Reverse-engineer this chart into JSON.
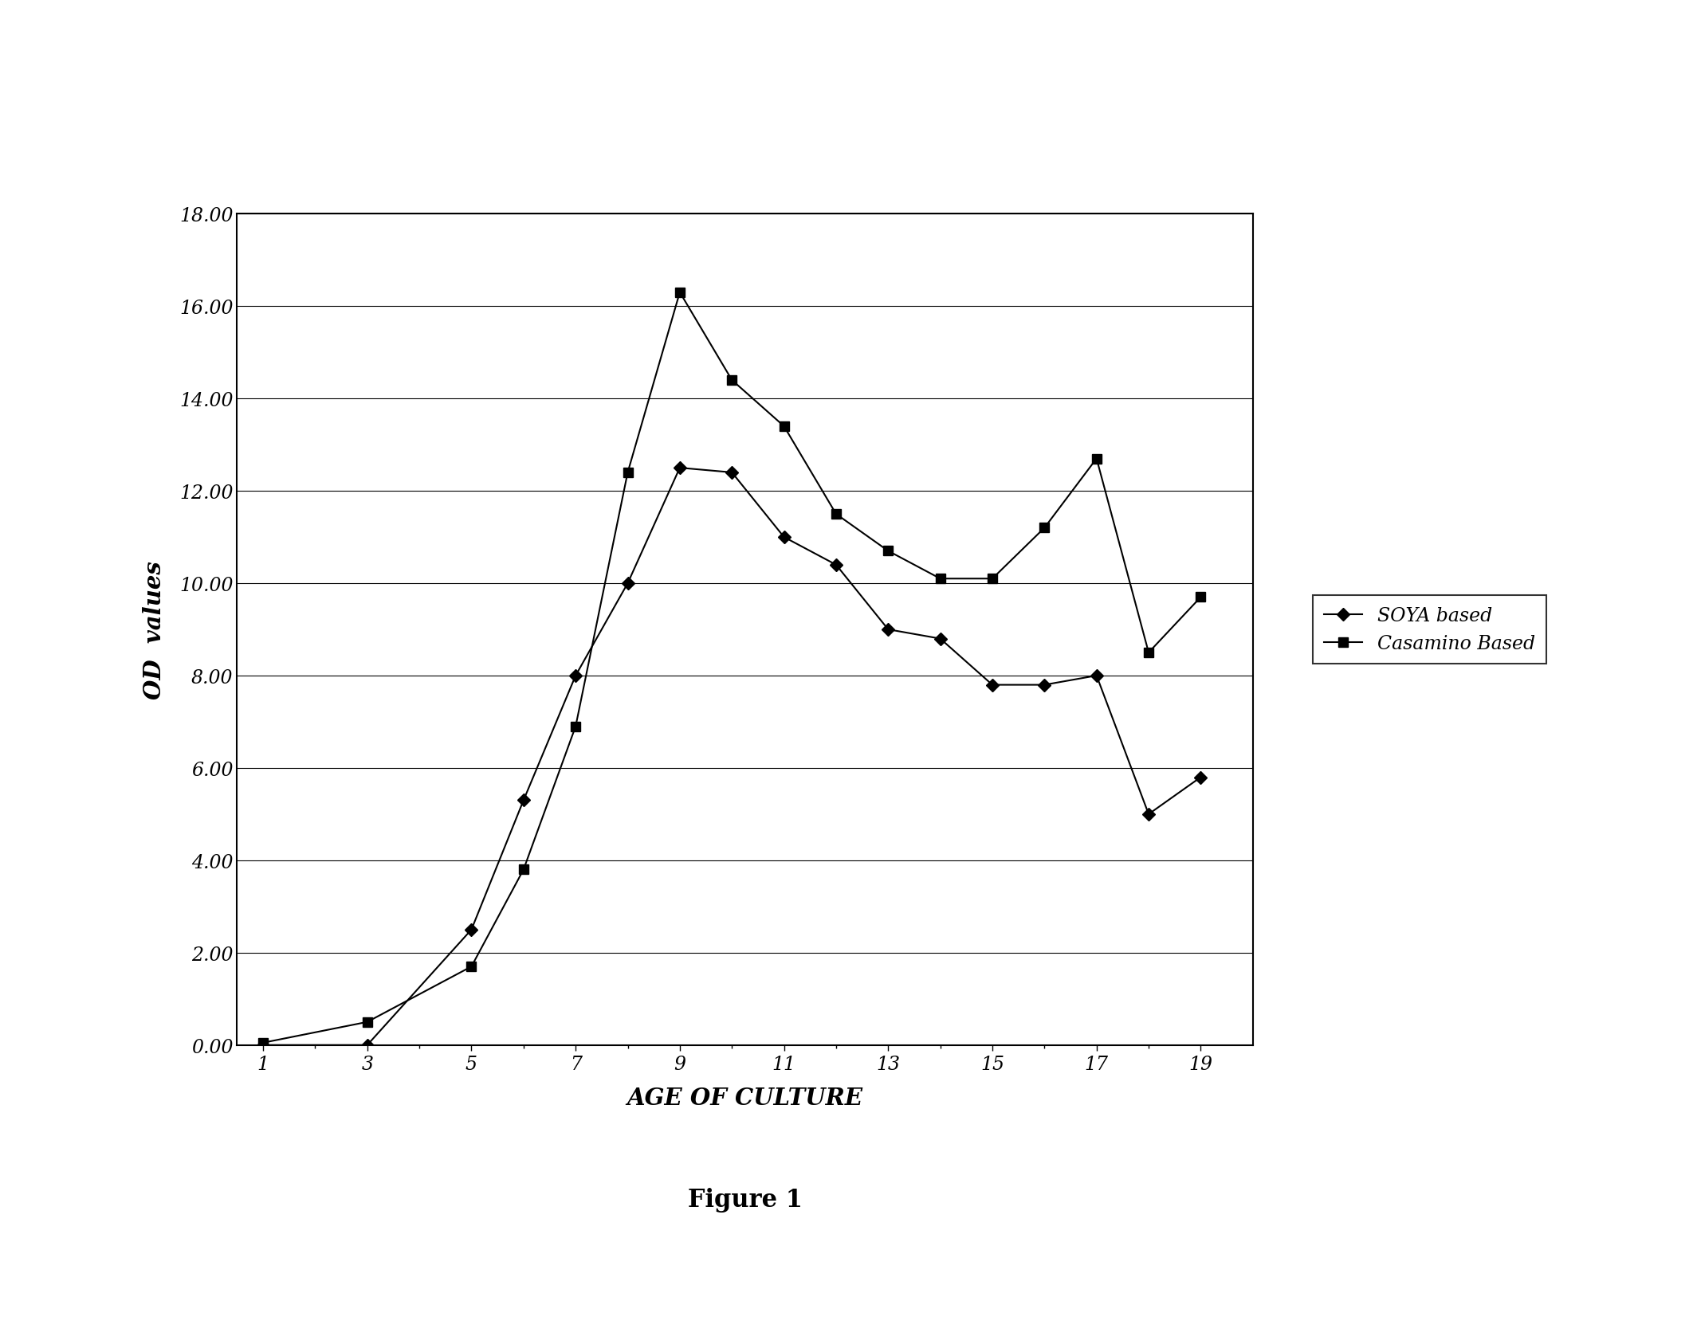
{
  "soya_x": [
    1,
    3,
    5,
    6,
    7,
    8,
    9,
    10,
    11,
    12,
    13,
    14,
    15,
    16,
    17,
    18,
    19
  ],
  "soya_y": [
    0.0,
    0.0,
    2.5,
    5.3,
    8.0,
    10.0,
    12.5,
    12.4,
    11.0,
    10.4,
    9.0,
    8.8,
    7.8,
    7.8,
    8.0,
    5.0,
    5.8
  ],
  "casamino_x": [
    1,
    3,
    5,
    6,
    7,
    8,
    9,
    10,
    11,
    12,
    13,
    14,
    15,
    16,
    17,
    18,
    19
  ],
  "casamino_y": [
    0.05,
    0.5,
    1.7,
    3.8,
    6.9,
    12.4,
    16.3,
    14.4,
    13.4,
    11.5,
    10.7,
    10.1,
    10.1,
    11.2,
    12.7,
    8.5,
    9.7
  ],
  "xlabel": "AGE OF CULTURE",
  "ylabel": "OD  values",
  "ylim": [
    0.0,
    18.0
  ],
  "yticks": [
    0.0,
    2.0,
    4.0,
    6.0,
    8.0,
    10.0,
    12.0,
    14.0,
    16.0,
    18.0
  ],
  "ytick_labels": [
    "0.00",
    "2.00",
    "4.00",
    "6.00",
    "8.00",
    "10.00",
    "12.00",
    "14.00",
    "16.00",
    "18.00"
  ],
  "xticks": [
    1,
    3,
    5,
    7,
    9,
    11,
    13,
    15,
    17,
    19
  ],
  "legend_soya": "SOYA based",
  "legend_casamino": "Casamino Based",
  "figure_label": "Figure 1",
  "background_color": "#ffffff",
  "line_color": "#000000"
}
